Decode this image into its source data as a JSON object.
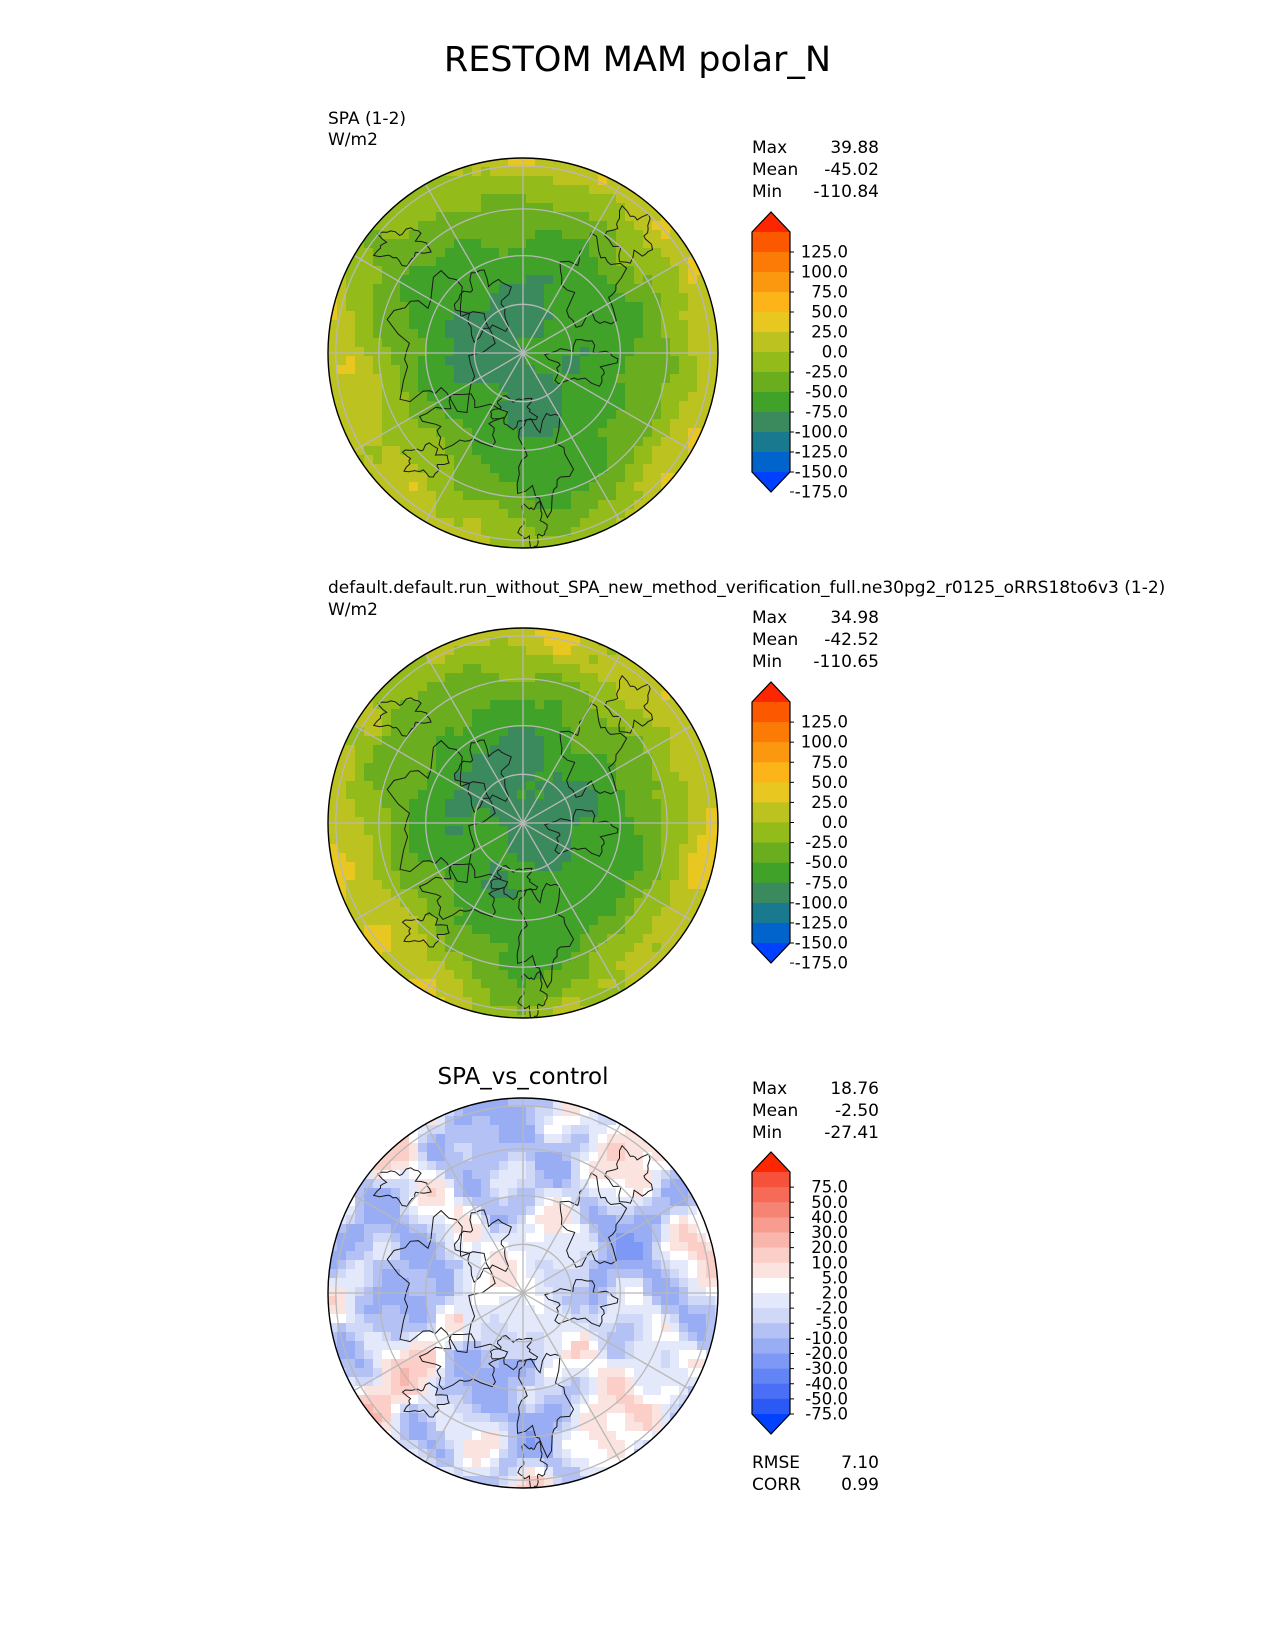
{
  "title": "RESTOM MAM polar_N",
  "colors": {
    "abs_levels": [
      "#0040ff",
      "#0064cc",
      "#197a8f",
      "#3b8a5e",
      "#41a22a",
      "#6aad1e",
      "#93bb19",
      "#bcc21f",
      "#e8c720",
      "#fcb418",
      "#fc9810",
      "#fc7a06",
      "#fc5800",
      "#fc2600"
    ],
    "diff_levels": [
      "#0040ff",
      "#2b59f5",
      "#4a6ef5",
      "#6384f5",
      "#7e98f5",
      "#99adf5",
      "#b3c1f5",
      "#cfd8f7",
      "#e3e9fa",
      "#ffffff",
      "#fbe3e0",
      "#fbcfc8",
      "#f9b6ac",
      "#f79c8f",
      "#f58474",
      "#f56b58",
      "#f5513b",
      "#fc2600"
    ],
    "grid": "#b8b8b8"
  },
  "panels": [
    {
      "id": "test",
      "title": "SPA (1-2)",
      "units": "W/m2",
      "stats": [
        {
          "label": "Max",
          "value": "39.88"
        },
        {
          "label": "Mean",
          "value": "-45.02"
        },
        {
          "label": "Min",
          "value": "-110.84"
        }
      ]
    },
    {
      "id": "reference",
      "title": "default.default.run_without_SPA_new_method_verification_full.ne30pg2_r0125_oRRS18to6v3 (1-2)",
      "units": "W/m2",
      "stats": [
        {
          "label": "Max",
          "value": "34.98"
        },
        {
          "label": "Mean",
          "value": "-42.52"
        },
        {
          "label": "Min",
          "value": "-110.65"
        }
      ]
    },
    {
      "id": "difference",
      "title": "SPA_vs_control",
      "stats": [
        {
          "label": "Max",
          "value": "18.76"
        },
        {
          "label": "Mean",
          "value": "-2.50"
        },
        {
          "label": "Min",
          "value": "-27.41"
        }
      ],
      "extra_stats": [
        {
          "label": "RMSE",
          "value": "7.10"
        },
        {
          "label": "CORR",
          "value": "0.99"
        }
      ]
    }
  ],
  "chart_data": [
    {
      "type": "heatmap",
      "projection": "north-polar-stereographic",
      "title": "SPA (1-2)",
      "units": "W/m2",
      "colorbar": {
        "levels": [
          -200,
          -175,
          -150,
          -125,
          -100,
          -75,
          -50,
          -25,
          0,
          25,
          50,
          75,
          100,
          125,
          150
        ],
        "tick_labels": [
          "125.0",
          "100.0",
          "75.0",
          "50.0",
          "25.0",
          "0.0",
          "-25.0",
          "-50.0",
          "-75.0",
          "-100.0",
          "-125.0",
          "-150.0",
          "-175.0"
        ],
        "extend": "both"
      },
      "field_summary": {
        "max": 39.88,
        "mean": -45.02,
        "min": -110.84,
        "pole_value": -110,
        "edge_value": -15
      }
    },
    {
      "type": "heatmap",
      "projection": "north-polar-stereographic",
      "title": "default.default.run_without_SPA_new_method_verification_full.ne30pg2_r0125_oRRS18to6v3 (1-2)",
      "units": "W/m2",
      "colorbar": {
        "levels": [
          -200,
          -175,
          -150,
          -125,
          -100,
          -75,
          -50,
          -25,
          0,
          25,
          50,
          75,
          100,
          125,
          150
        ],
        "tick_labels": [
          "125.0",
          "100.0",
          "75.0",
          "50.0",
          "25.0",
          "0.0",
          "-25.0",
          "-50.0",
          "-75.0",
          "-100.0",
          "-125.0",
          "-150.0",
          "-175.0"
        ],
        "extend": "both"
      },
      "field_summary": {
        "max": 34.98,
        "mean": -42.52,
        "min": -110.65,
        "pole_value": -110,
        "edge_value": -12
      }
    },
    {
      "type": "heatmap",
      "projection": "north-polar-stereographic",
      "title": "SPA_vs_control",
      "colorbar": {
        "levels": [
          -100,
          -75,
          -50,
          -40,
          -30,
          -20,
          -10,
          -5,
          -2,
          2,
          5,
          10,
          20,
          30,
          40,
          50,
          75,
          100
        ],
        "tick_labels": [
          "75.0",
          "50.0",
          "40.0",
          "30.0",
          "20.0",
          "10.0",
          "5.0",
          "2.0",
          "-2.0",
          "-5.0",
          "-10.0",
          "-20.0",
          "-30.0",
          "-40.0",
          "-50.0",
          "-75.0"
        ],
        "extend": "both"
      },
      "field_summary": {
        "max": 18.76,
        "mean": -2.5,
        "min": -27.41,
        "rmse": 7.1,
        "corr": 0.99
      }
    }
  ]
}
